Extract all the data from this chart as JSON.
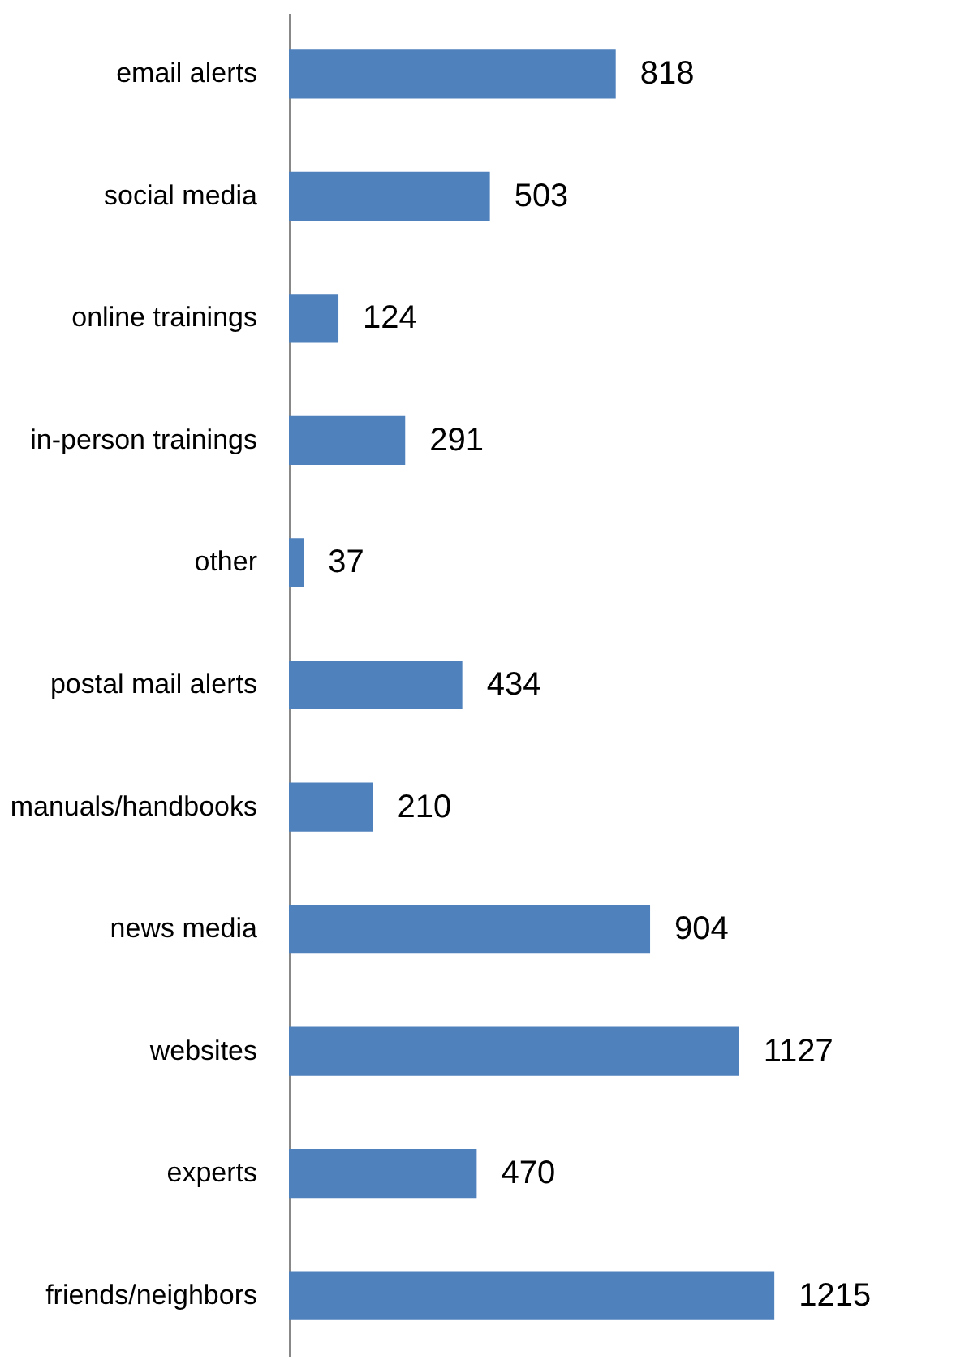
{
  "chart_data": {
    "type": "bar",
    "orientation": "horizontal",
    "categories": [
      "email alerts",
      "social media",
      "online trainings",
      "in-person trainings",
      "other",
      "postal mail alerts",
      "manuals/handbooks",
      "news media",
      "websites",
      "experts",
      "friends/neighbors"
    ],
    "values": [
      818,
      503,
      124,
      291,
      37,
      434,
      210,
      904,
      1127,
      470,
      1215
    ],
    "color": "#4f81bd",
    "data_labels": true,
    "grid": false
  }
}
